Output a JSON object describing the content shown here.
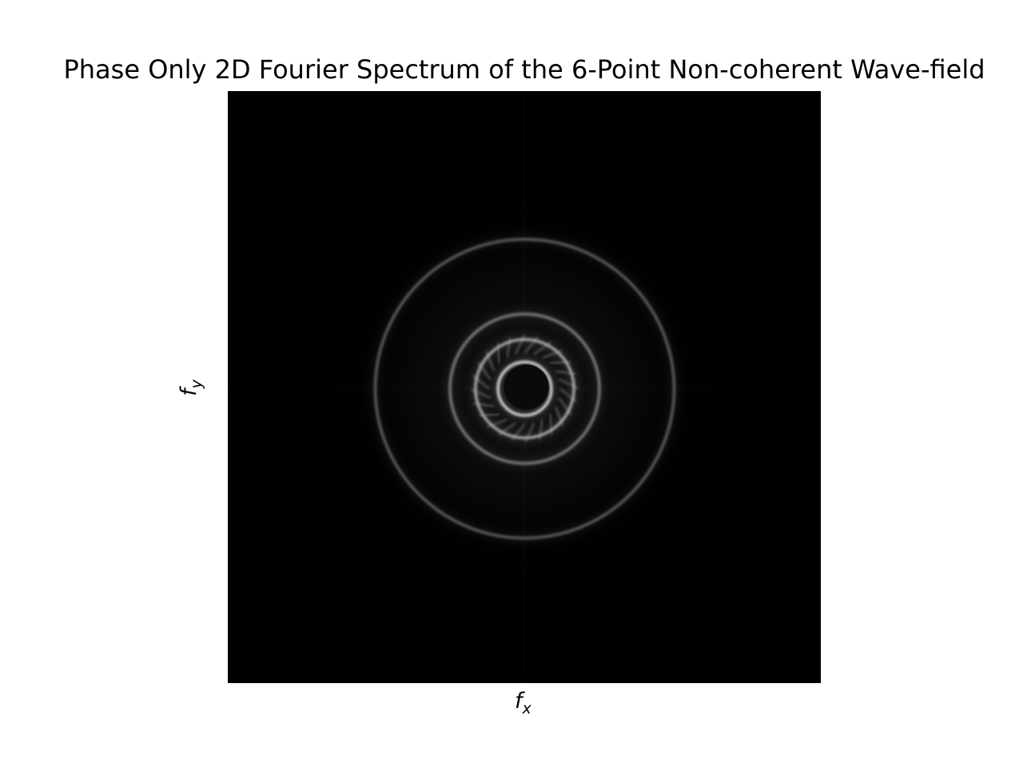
{
  "chart_data": {
    "type": "heatmap",
    "title": "Phase Only 2D Fourier Spectrum of the 6-Point Non-coherent Wave-field",
    "xlabel": "f",
    "xlabel_sub": "x",
    "ylabel": "f",
    "ylabel_sub": "y",
    "colormap": "gray",
    "background_color": "#000000",
    "ticks_visible": false,
    "grid": false,
    "rings": [
      {
        "name": "outer",
        "radius_frac": 0.252,
        "intensity": 0.42
      },
      {
        "name": "middle",
        "radius_frac": 0.126,
        "intensity": 0.55
      },
      {
        "name": "inner-bright",
        "radius_frac": 0.083,
        "intensity": 0.75
      },
      {
        "name": "core-edge",
        "radius_frac": 0.045,
        "intensity": 0.95
      }
    ]
  }
}
